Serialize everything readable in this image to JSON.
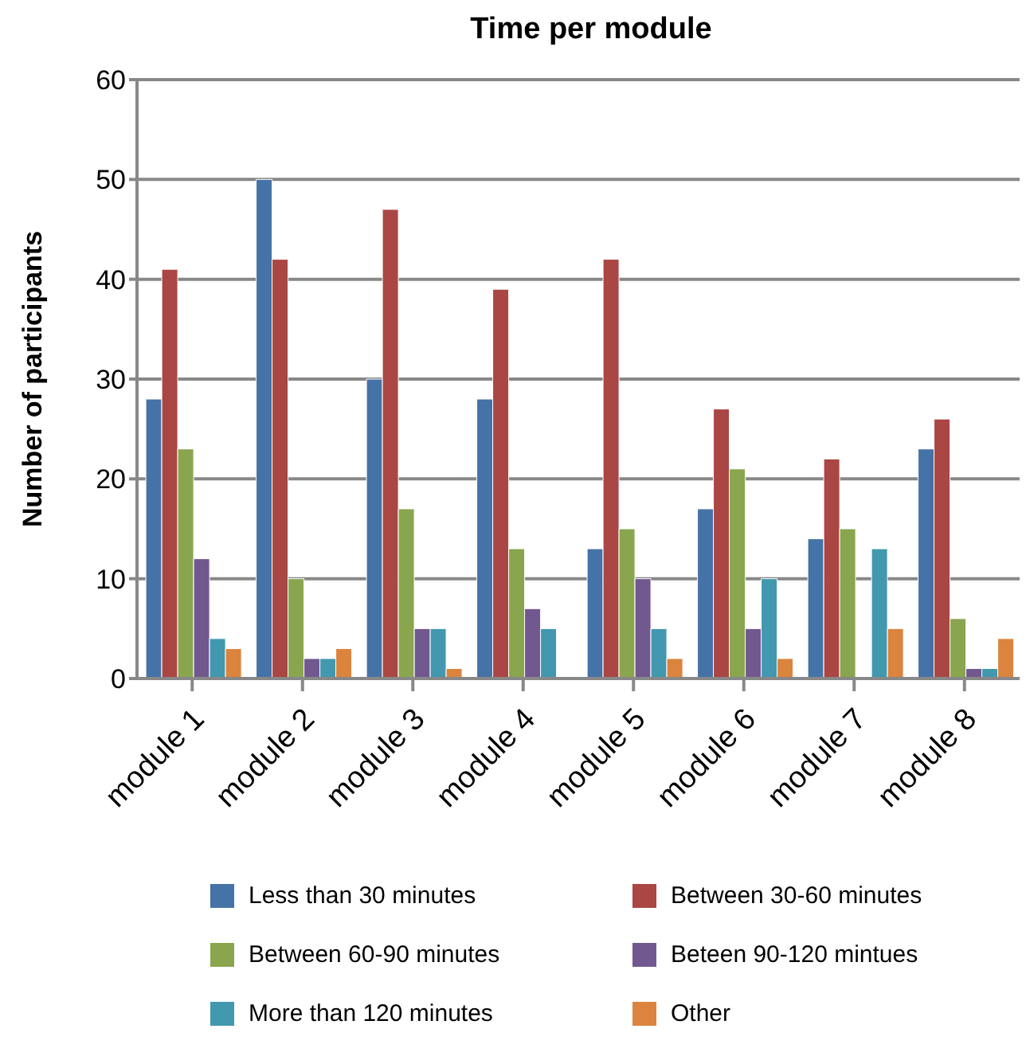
{
  "chart_data": {
    "type": "bar",
    "title": "Time per module",
    "ylabel": "Number of participants",
    "categories": [
      "module 1",
      "module 2",
      "module 3",
      "module 4",
      "module 5",
      "module 6",
      "module 7",
      "module 8"
    ],
    "series": [
      {
        "name": "Less than 30 minutes",
        "color": "#4572a7",
        "values": [
          28,
          50,
          30,
          28,
          13,
          17,
          14,
          23
        ]
      },
      {
        "name": "Between 30-60 minutes",
        "color": "#aa4643",
        "values": [
          41,
          42,
          47,
          39,
          42,
          27,
          22,
          26
        ]
      },
      {
        "name": "Between 60-90 minutes",
        "color": "#89a54e",
        "values": [
          23,
          10,
          17,
          13,
          15,
          21,
          15,
          6
        ]
      },
      {
        "name": "Beteen 90-120 mintues",
        "color": "#71588f",
        "values": [
          12,
          2,
          5,
          7,
          10,
          5,
          0,
          1
        ]
      },
      {
        "name": "More than 120 minutes",
        "color": "#4198af",
        "values": [
          4,
          2,
          5,
          5,
          5,
          10,
          13,
          1
        ]
      },
      {
        "name": "Other",
        "color": "#db843d",
        "values": [
          3,
          3,
          1,
          0,
          2,
          2,
          5,
          4
        ]
      }
    ],
    "ylim": [
      0,
      60
    ],
    "yticks": [
      0,
      10,
      20,
      30,
      40,
      50,
      60
    ],
    "grid": "y",
    "legend": "bottom"
  }
}
